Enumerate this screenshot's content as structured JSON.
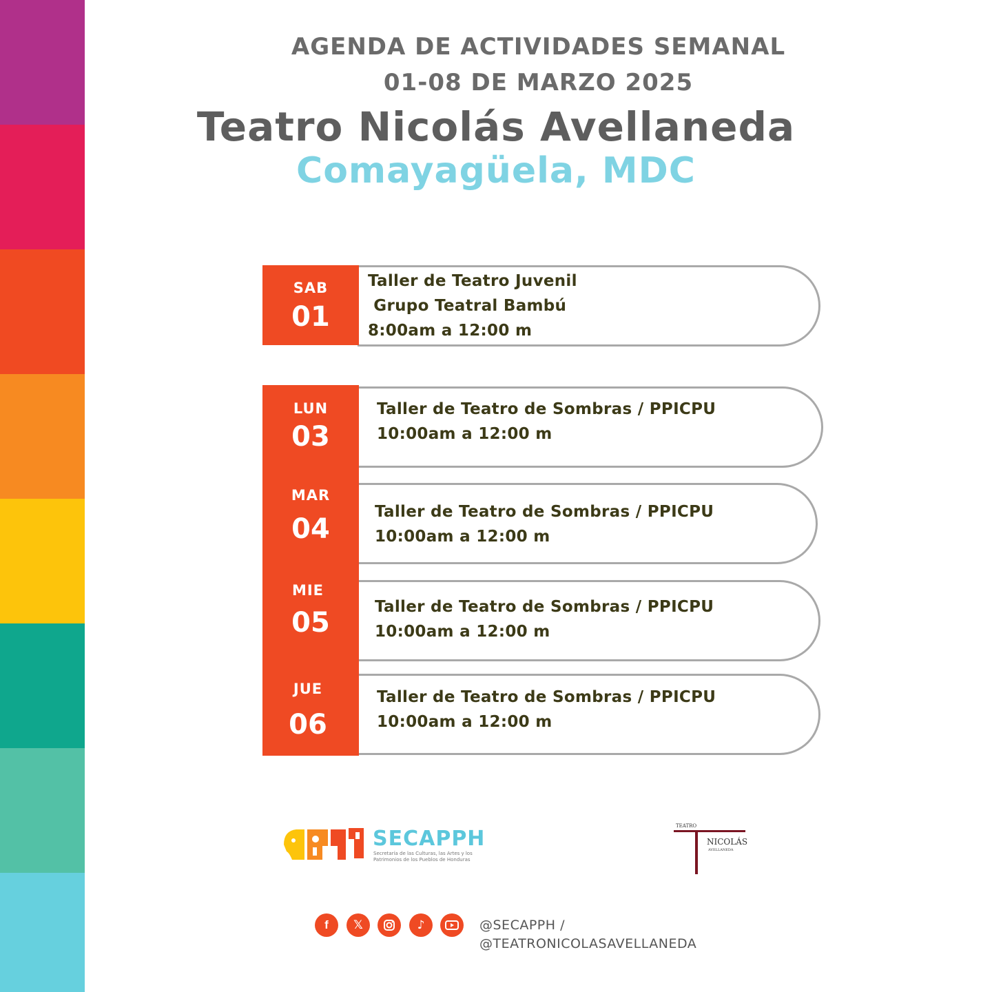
{
  "stripe_colors": [
    "#b0308a",
    "#e41e58",
    "#f04a22",
    "#f78a21",
    "#fdc40b",
    "#0fa78d",
    "#53c1a6",
    "#66d0de"
  ],
  "header": {
    "line1": "AGENDA DE ACTIVIDADES SEMANAL",
    "line2": "01-08 DE MARZO 2025",
    "title": "Teatro Nicolás Avellaneda",
    "subtitle": "Comayagüela, MDC"
  },
  "events": [
    {
      "dow": "SAB",
      "day": "01",
      "lines": [
        "Taller de Teatro Juvenil",
        " Grupo Teatral Bambú",
        "8:00am a 12:00 m"
      ]
    },
    {
      "dow": "LUN",
      "day": "03",
      "lines": [
        "Taller de Teatro de Sombras / PPICPU",
        "10:00am a 12:00 m"
      ]
    },
    {
      "dow": "MAR",
      "day": "04",
      "lines": [
        "Taller de Teatro de Sombras / PPICPU",
        "10:00am a 12:00 m"
      ]
    },
    {
      "dow": "MIE",
      "day": "05",
      "lines": [
        "Taller de Teatro de Sombras / PPICPU",
        "10:00am a 12:00 m"
      ]
    },
    {
      "dow": "JUE",
      "day": "06",
      "lines": [
        "Taller de Teatro de Sombras / PPICPU",
        "10:00am a 12:00 m"
      ]
    }
  ],
  "logos": {
    "secapph": {
      "name": "SECAPPH",
      "tagline1": "Secretaría de las Culturas, las Artes y los",
      "tagline2": "Patrimonios de los Pueblos de Honduras"
    },
    "teatro": {
      "small": "TEATRO",
      "name": "NICOLÁS",
      "sub": "AVELLANEDA"
    }
  },
  "social": {
    "icons": [
      "facebook-icon",
      "x-icon",
      "instagram-icon",
      "tiktok-icon",
      "youtube-icon"
    ],
    "handle1": "@SECAPPH /",
    "handle2": "@TEATRONICOLASAVELLANEDA"
  }
}
